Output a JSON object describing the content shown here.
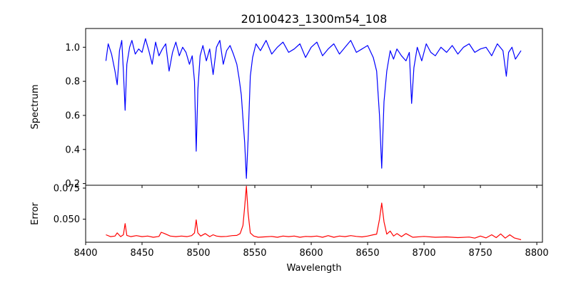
{
  "chart_data": [
    {
      "type": "line",
      "panel": "top",
      "title": "20100423_1300m54_108",
      "xlabel": "",
      "ylabel": "Spectrum",
      "xlim": [
        8400,
        8805
      ],
      "ylim": [
        0.19,
        1.11
      ],
      "x_ticks": [
        8400,
        8450,
        8500,
        8550,
        8600,
        8650,
        8700,
        8750,
        8800
      ],
      "y_ticks": [
        0.2,
        0.4,
        0.6,
        0.8,
        1.0
      ],
      "y_tick_labels": [
        "0.2",
        "0.4",
        "0.6",
        "0.8",
        "1.0"
      ],
      "grid": false,
      "color": "#0000ff",
      "series": [
        {
          "x": [
            8418,
            8420,
            8423,
            8426,
            8428,
            8430,
            8432,
            8433.5,
            8435,
            8436.5,
            8439,
            8441,
            8444,
            8447,
            8450,
            8453,
            8456,
            8459,
            8462,
            8465,
            8468,
            8471,
            8474,
            8477,
            8480,
            8483,
            8486,
            8489,
            8492,
            8494.5,
            8496.5,
            8498,
            8499.5,
            8501.5,
            8504,
            8507,
            8510,
            8513,
            8516,
            8519,
            8522,
            8525,
            8528,
            8531,
            8534,
            8536,
            8538,
            8539.5,
            8541,
            8542.5,
            8544,
            8546,
            8548,
            8551,
            8555,
            8560,
            8565,
            8570,
            8575,
            8580,
            8585,
            8590,
            8595,
            8600,
            8605,
            8610,
            8615,
            8620,
            8625,
            8630,
            8635,
            8640,
            8645,
            8650,
            8655,
            8658,
            8660.5,
            8662.5,
            8664.5,
            8667,
            8670,
            8673,
            8676,
            8680,
            8684,
            8687,
            8689,
            8691,
            8694,
            8698,
            8702,
            8706,
            8710,
            8715,
            8720,
            8725,
            8730,
            8735,
            8740,
            8745,
            8750,
            8755,
            8760,
            8765,
            8770,
            8773,
            8775,
            8778,
            8781,
            8784,
            8786
          ],
          "y": [
            0.92,
            1.02,
            0.96,
            0.86,
            0.78,
            0.98,
            1.04,
            0.86,
            0.63,
            0.9,
            1.0,
            1.04,
            0.96,
            0.99,
            0.97,
            1.05,
            0.98,
            0.9,
            1.03,
            0.95,
            0.99,
            1.02,
            0.86,
            0.97,
            1.03,
            0.95,
            1.0,
            0.97,
            0.9,
            0.95,
            0.8,
            0.39,
            0.75,
            0.95,
            1.01,
            0.92,
            0.99,
            0.84,
            1.0,
            1.04,
            0.9,
            0.98,
            1.01,
            0.96,
            0.9,
            0.82,
            0.72,
            0.58,
            0.44,
            0.23,
            0.46,
            0.83,
            0.94,
            1.02,
            0.98,
            1.04,
            0.96,
            1.0,
            1.03,
            0.97,
            0.99,
            1.02,
            0.94,
            1.0,
            1.03,
            0.95,
            0.99,
            1.02,
            0.96,
            1.0,
            1.04,
            0.97,
            0.99,
            1.01,
            0.94,
            0.86,
            0.6,
            0.29,
            0.68,
            0.86,
            0.98,
            0.93,
            0.99,
            0.95,
            0.92,
            0.97,
            0.67,
            0.88,
            1.0,
            0.92,
            1.02,
            0.97,
            0.95,
            1.0,
            0.97,
            1.01,
            0.96,
            1.0,
            1.02,
            0.97,
            0.99,
            1.0,
            0.95,
            1.02,
            0.98,
            0.83,
            0.97,
            1.0,
            0.93,
            0.96,
            0.98
          ]
        }
      ]
    },
    {
      "type": "line",
      "panel": "bottom",
      "title": "",
      "xlabel": "Wavelength",
      "ylabel": "Error",
      "xlim": [
        8400,
        8805
      ],
      "ylim": [
        0.0315,
        0.0773
      ],
      "x_ticks": [
        8400,
        8450,
        8500,
        8550,
        8600,
        8650,
        8700,
        8750,
        8800
      ],
      "x_tick_labels": [
        "8400",
        "8450",
        "8500",
        "8550",
        "8600",
        "8650",
        "8700",
        "8750",
        "8800"
      ],
      "y_ticks": [
        0.05,
        0.075
      ],
      "y_tick_labels": [
        "0.050",
        "0.075"
      ],
      "grid": false,
      "color": "#ff0000",
      "series": [
        {
          "x": [
            8418,
            8422,
            8426,
            8428,
            8431,
            8433.5,
            8435,
            8436.5,
            8440,
            8445,
            8450,
            8455,
            8460,
            8465,
            8467,
            8470,
            8475,
            8480,
            8485,
            8490,
            8494,
            8496.5,
            8498,
            8499.5,
            8502,
            8506,
            8510,
            8513,
            8516,
            8520,
            8525,
            8530,
            8534,
            8537,
            8539.5,
            8541,
            8542.5,
            8544,
            8546,
            8549,
            8553,
            8558,
            8565,
            8570,
            8575,
            8580,
            8585,
            8590,
            8595,
            8600,
            8605,
            8610,
            8615,
            8620,
            8625,
            8630,
            8635,
            8640,
            8645,
            8650,
            8655,
            8658,
            8660.5,
            8662.5,
            8664.5,
            8667,
            8670,
            8673,
            8676,
            8680,
            8684,
            8690,
            8700,
            8710,
            8720,
            8730,
            8740,
            8745,
            8750,
            8755,
            8760,
            8764,
            8768,
            8772,
            8776,
            8780,
            8784,
            8786
          ],
          "y": [
            0.0375,
            0.036,
            0.0365,
            0.039,
            0.036,
            0.0375,
            0.0465,
            0.037,
            0.036,
            0.0368,
            0.036,
            0.0365,
            0.0355,
            0.0362,
            0.0395,
            0.0385,
            0.0365,
            0.036,
            0.0365,
            0.036,
            0.0368,
            0.039,
            0.0495,
            0.039,
            0.0365,
            0.0385,
            0.036,
            0.0375,
            0.0365,
            0.036,
            0.0362,
            0.0368,
            0.037,
            0.0385,
            0.045,
            0.06,
            0.0765,
            0.055,
            0.039,
            0.0365,
            0.0355,
            0.0358,
            0.0362,
            0.0355,
            0.0365,
            0.036,
            0.0365,
            0.0355,
            0.0362,
            0.036,
            0.0365,
            0.0355,
            0.0368,
            0.0355,
            0.0365,
            0.036,
            0.0368,
            0.0362,
            0.0358,
            0.0365,
            0.0375,
            0.038,
            0.05,
            0.063,
            0.048,
            0.038,
            0.0405,
            0.0365,
            0.0385,
            0.036,
            0.0385,
            0.0355,
            0.0362,
            0.0355,
            0.0358,
            0.0352,
            0.0357,
            0.0348,
            0.0365,
            0.035,
            0.0375,
            0.0352,
            0.0382,
            0.0348,
            0.0375,
            0.035,
            0.034,
            0.0335
          ]
        }
      ]
    }
  ]
}
